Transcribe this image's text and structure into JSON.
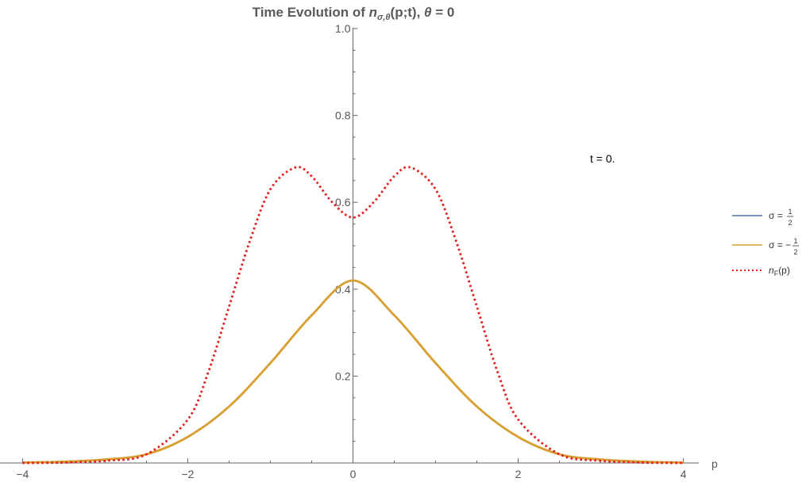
{
  "chart_data": {
    "type": "line",
    "title_prefix": "Time Evolution of ",
    "title_var": "n",
    "title_sub": "σ,θ",
    "title_args": "(p;t), ",
    "title_theta": "θ",
    "title_suffix": " = 0",
    "xlabel": "p",
    "ylabel": "",
    "xlim": [
      -4.1,
      4.1
    ],
    "ylim": [
      0,
      1.0
    ],
    "x_ticks": [
      -4,
      -2,
      0,
      2,
      4
    ],
    "x_tick_labels": [
      "−4",
      "−2",
      "0",
      "2",
      "4"
    ],
    "y_ticks": [
      0.2,
      0.4,
      0.6,
      0.8,
      1.0
    ],
    "y_tick_labels": [
      "0.2",
      "0.4",
      "0.6",
      "0.8",
      "1.0"
    ],
    "annotation": "t = 0.",
    "grid": false,
    "legend_position": "right",
    "legend": [
      {
        "label_main": "σ = ",
        "frac_num": "1",
        "frac_den": "2",
        "color": "#4a6fa5",
        "style": "solid"
      },
      {
        "label_main": "σ = −",
        "frac_num": "1",
        "frac_den": "2",
        "color": "#d9a030",
        "style": "solid"
      },
      {
        "label_main": "n",
        "label_sub": "F",
        "label_tail": "(p)",
        "color": "#e41a1c",
        "style": "dotted"
      }
    ],
    "series": [
      {
        "name": "σ = 1/2",
        "color": "#4a6fa5",
        "x": [
          -4,
          -3.5,
          -3,
          -2.5,
          -2,
          -1.5,
          -1,
          -0.5,
          0,
          0.5,
          1,
          1.5,
          2,
          2.5,
          3,
          3.5,
          4
        ],
        "y": [
          0.001,
          0.003,
          0.008,
          0.02,
          0.06,
          0.13,
          0.23,
          0.34,
          0.42,
          0.34,
          0.23,
          0.13,
          0.06,
          0.02,
          0.008,
          0.003,
          0.001
        ]
      },
      {
        "name": "σ = −1/2",
        "color": "#d9a030",
        "x": [
          -4,
          -3.5,
          -3,
          -2.5,
          -2,
          -1.5,
          -1,
          -0.5,
          0,
          0.5,
          1,
          1.5,
          2,
          2.5,
          3,
          3.5,
          4
        ],
        "y": [
          0.001,
          0.003,
          0.008,
          0.02,
          0.06,
          0.13,
          0.23,
          0.34,
          0.42,
          0.34,
          0.23,
          0.13,
          0.06,
          0.02,
          0.008,
          0.003,
          0.001
        ]
      },
      {
        "name": "n_F(p)",
        "color": "#e41a1c",
        "x": [
          -4,
          -3.5,
          -3,
          -2.5,
          -2,
          -1.75,
          -1.5,
          -1.25,
          -1,
          -0.7,
          -0.5,
          -0.25,
          0,
          0.25,
          0.5,
          0.7,
          1,
          1.25,
          1.5,
          1.75,
          2,
          2.5,
          3,
          3.5,
          4
        ],
        "y": [
          0.0,
          0.001,
          0.005,
          0.02,
          0.1,
          0.21,
          0.36,
          0.51,
          0.63,
          0.68,
          0.66,
          0.6,
          0.565,
          0.6,
          0.66,
          0.68,
          0.63,
          0.51,
          0.36,
          0.21,
          0.1,
          0.02,
          0.005,
          0.001,
          0.0
        ]
      }
    ]
  }
}
